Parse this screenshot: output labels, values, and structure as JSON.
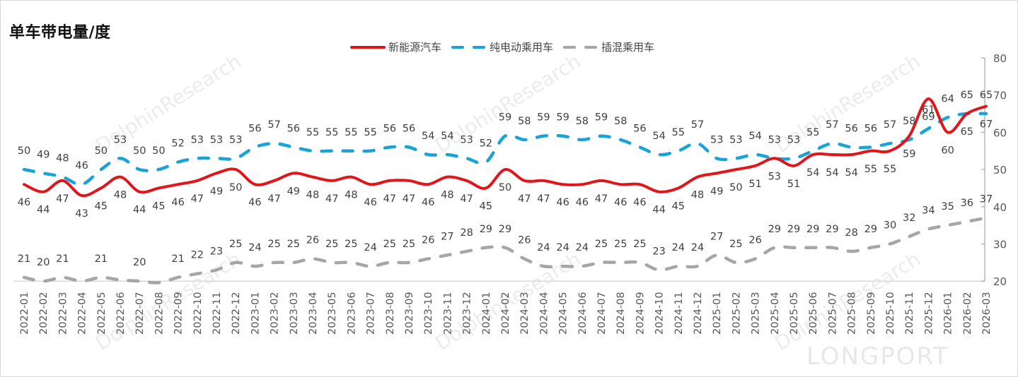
{
  "header": {
    "title": "单车带电量/度"
  },
  "legend": [
    {
      "label": "新能源汽车",
      "color": "#e0161b",
      "style": "solid"
    },
    {
      "label": "纯电动乘用车",
      "color": "#1aa3d8",
      "style": "dashed"
    },
    {
      "label": "插混乘用车",
      "color": "#a6a6a6",
      "style": "dashed"
    }
  ],
  "watermark": {
    "text": "DolphinResearch",
    "brand": "LONGPORT"
  },
  "chart_data": {
    "type": "line",
    "title": "单车带电量/度",
    "xlabel": "",
    "ylabel": "",
    "ylim": [
      20,
      80
    ],
    "yticks": [
      20,
      30,
      40,
      50,
      60,
      70,
      80
    ],
    "y_axis_position": "right",
    "grid": false,
    "legend_position": "top",
    "categories": [
      "2022-01",
      "2022-02",
      "2022-03",
      "2022-04",
      "2022-05",
      "2022-06",
      "2022-07",
      "2022-08",
      "2022-09",
      "2022-10",
      "2022-11",
      "2022-12",
      "2023-01",
      "2023-02",
      "2023-03",
      "2023-04",
      "2023-05",
      "2023-06",
      "2023-07",
      "2023-08",
      "2023-09",
      "2023-10",
      "2023-11",
      "2023-12",
      "2024-01",
      "2024-02",
      "2024-03",
      "2024-04",
      "2024-05",
      "2024-06",
      "2024-07",
      "2024-08",
      "2024-09",
      "2024-10",
      "2024-11",
      "2024-12",
      "2025-01",
      "2025-02",
      "2025-03",
      "2025-04",
      "2025-05",
      "2025-06",
      "2025-07",
      "2025-08",
      "2025-09",
      "2025-10",
      "2025-11",
      "2025-12",
      "2026-01",
      "2026-02",
      "2026-03"
    ],
    "series": [
      {
        "name": "新能源汽车",
        "color": "#e0161b",
        "label_pos": "below",
        "values": [
          46,
          44,
          47,
          43,
          45,
          48,
          44,
          45,
          46,
          47,
          49,
          50,
          46,
          47,
          49,
          48,
          47,
          48,
          46,
          47,
          47,
          46,
          48,
          47,
          45,
          50,
          47,
          47,
          46,
          46,
          47,
          46,
          46,
          44,
          45,
          48,
          49,
          50,
          51,
          53,
          51,
          54,
          54,
          54,
          55,
          55,
          59,
          69,
          60,
          65,
          67
        ],
        "labels": [
          "46",
          "44",
          "47",
          "43",
          "45",
          "48",
          "44",
          "45",
          "46",
          "47",
          "49",
          "50",
          "46",
          "47",
          "49",
          "48",
          "47",
          "48",
          "46",
          "47",
          "47",
          "46",
          "48",
          "47",
          "45",
          "50",
          "47",
          "47",
          "46",
          "46",
          "47",
          "46",
          "46",
          "44",
          "45",
          "48",
          "49",
          "50",
          "51",
          "53",
          "51",
          "54",
          "54",
          "54",
          "55",
          "55",
          "59",
          "69",
          "60",
          "65",
          "67"
        ]
      },
      {
        "name": "纯电动乘用车",
        "color": "#1aa3d8",
        "label_pos": "above",
        "values": [
          50,
          49,
          48,
          46,
          50,
          53,
          50,
          50,
          52,
          53,
          53,
          53,
          56,
          57,
          56,
          55,
          55,
          55,
          55,
          56,
          56,
          54,
          54,
          53,
          52,
          59,
          58,
          59,
          59,
          58,
          59,
          58,
          56,
          54,
          55,
          57,
          53,
          53,
          54,
          53,
          53,
          55,
          57,
          56,
          56,
          57,
          58,
          61,
          64,
          65,
          65
        ],
        "labels": [
          "50",
          "49",
          "48",
          "46",
          "50",
          "53",
          "50",
          "50",
          "52",
          "53",
          "53",
          "53",
          "56",
          "57",
          "56",
          "55",
          "55",
          "55",
          "55",
          "56",
          "56",
          "54",
          "54",
          "53",
          "52",
          "59",
          "58",
          "59",
          "59",
          "58",
          "59",
          "58",
          "56",
          "54",
          "55",
          "57",
          "53",
          "53",
          "54",
          "53",
          "53",
          "55",
          "57",
          "56",
          "56",
          "57",
          "58",
          "61",
          "64",
          "65",
          "65"
        ]
      },
      {
        "name": "插混乘用车",
        "color": "#a6a6a6",
        "label_pos": "above",
        "values": [
          21,
          20,
          21,
          20,
          21,
          20.3,
          20,
          19.6,
          21,
          22,
          23,
          25,
          24,
          25,
          25,
          26,
          25,
          25,
          24,
          25,
          25,
          26,
          27,
          28,
          29,
          29,
          26,
          24,
          24,
          24,
          25,
          25,
          25,
          23,
          24,
          24,
          27,
          25,
          26,
          29,
          29,
          29,
          29,
          28,
          29,
          30,
          32,
          34,
          35,
          36,
          37
        ],
        "labels": [
          "21",
          "20",
          "21",
          "",
          "21",
          "",
          "20",
          "",
          "21",
          "22",
          "23",
          "25",
          "24",
          "25",
          "25",
          "26",
          "25",
          "25",
          "24",
          "25",
          "25",
          "26",
          "27",
          "28",
          "29",
          "29",
          "26",
          "24",
          "24",
          "24",
          "25",
          "25",
          "25",
          "23",
          "24",
          "24",
          "27",
          "25",
          "26",
          "29",
          "29",
          "29",
          "29",
          "28",
          "29",
          "30",
          "32",
          "34",
          "35",
          "36",
          "37"
        ]
      }
    ]
  }
}
